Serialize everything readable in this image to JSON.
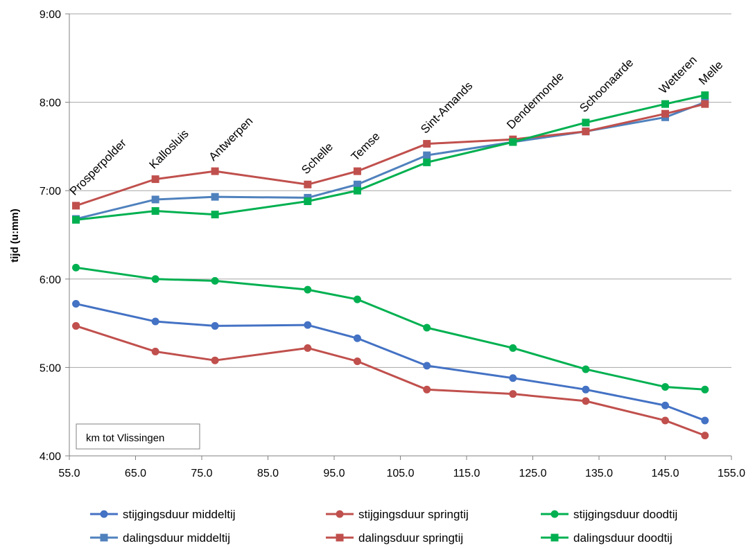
{
  "chart_data": {
    "type": "line",
    "ylabel": "tijd (u:mm)",
    "xlabel": "",
    "note": "km tot Vlissingen",
    "xlim": [
      55,
      155
    ],
    "ylim": [
      4,
      9
    ],
    "x_ticks": [
      "55.0",
      "65.0",
      "75.0",
      "85.0",
      "95.0",
      "105.0",
      "115.0",
      "125.0",
      "135.0",
      "145.0",
      "155.0"
    ],
    "y_ticks": [
      "4:00",
      "5:00",
      "6:00",
      "7:00",
      "8:00",
      "9:00"
    ],
    "grid": "horizontal",
    "legend_position": "bottom",
    "locations": [
      {
        "name": "Prosperpolder",
        "km": 56
      },
      {
        "name": "Kallosluis",
        "km": 68
      },
      {
        "name": "Antwerpen",
        "km": 77
      },
      {
        "name": "Schelle",
        "km": 91
      },
      {
        "name": "Temse",
        "km": 98.5
      },
      {
        "name": "Sint-Amands",
        "km": 109
      },
      {
        "name": "Dendermonde",
        "km": 122
      },
      {
        "name": "Schoonaarde",
        "km": 133
      },
      {
        "name": "Wetteren",
        "km": 145
      },
      {
        "name": "Melle",
        "km": 151
      }
    ],
    "x": [
      56,
      68,
      77,
      91,
      98.5,
      109,
      122,
      133,
      145,
      151
    ],
    "series": [
      {
        "name": "stijgingsduur middeltij",
        "color": "#4472c4",
        "marker": "circle",
        "values": [
          5.72,
          5.52,
          5.47,
          5.48,
          5.33,
          5.02,
          4.88,
          4.75,
          4.57,
          4.4
        ]
      },
      {
        "name": "stijgingsduur springtij",
        "color": "#c0504d",
        "marker": "circle",
        "values": [
          5.47,
          5.18,
          5.08,
          5.22,
          5.07,
          4.75,
          4.7,
          4.62,
          4.4,
          4.23
        ]
      },
      {
        "name": "stijgingsduur doodtij",
        "color": "#00b050",
        "marker": "circle",
        "values": [
          6.13,
          6.0,
          5.98,
          5.88,
          5.77,
          5.45,
          5.22,
          4.98,
          4.78,
          4.75
        ]
      },
      {
        "name": "dalingsduur middeltij",
        "color": "#4f81bd",
        "marker": "square",
        "values": [
          6.68,
          6.9,
          6.93,
          6.92,
          7.07,
          7.4,
          7.55,
          7.67,
          7.83,
          8.0
        ]
      },
      {
        "name": "dalingsduur springtij",
        "color": "#c0504d",
        "marker": "square",
        "values": [
          6.83,
          7.13,
          7.22,
          7.07,
          7.22,
          7.53,
          7.58,
          7.67,
          7.87,
          7.98
        ]
      },
      {
        "name": "dalingsduur doodtij",
        "color": "#00b050",
        "marker": "square",
        "values": [
          6.67,
          6.77,
          6.73,
          6.88,
          7.0,
          7.32,
          7.55,
          7.77,
          7.98,
          8.08
        ]
      }
    ]
  }
}
